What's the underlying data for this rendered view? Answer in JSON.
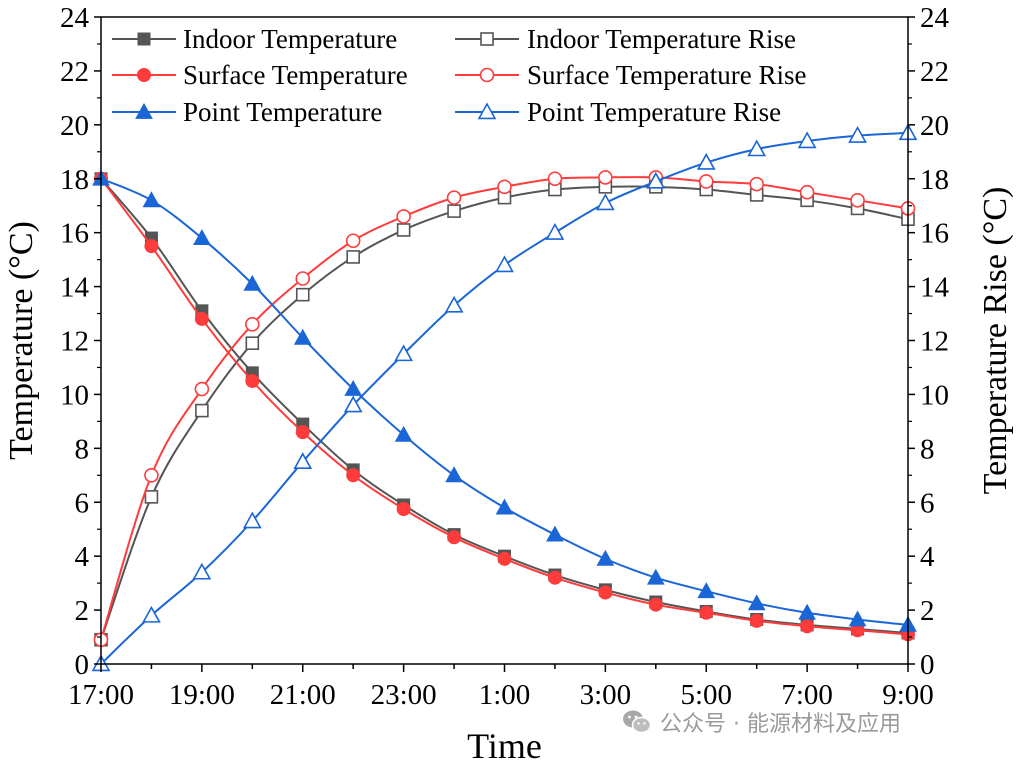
{
  "chart_data": {
    "type": "line",
    "title": "",
    "xlabel": "Time",
    "ylabel": "Temperature (°C)",
    "y2label": "Temperature Rise (°C)",
    "ylim": [
      0,
      24
    ],
    "y2lim": [
      0,
      24
    ],
    "yticks": [
      0,
      2,
      4,
      6,
      8,
      10,
      12,
      14,
      16,
      18,
      20,
      22,
      24
    ],
    "xticks": [
      "17:00",
      "19:00",
      "21:00",
      "23:00",
      "1:00",
      "3:00",
      "5:00",
      "7:00",
      "9:00"
    ],
    "x_hours": [
      0,
      1,
      2,
      3,
      4,
      5,
      6,
      7,
      8,
      9,
      10,
      11,
      12,
      13,
      14,
      15,
      16
    ],
    "legend_position": "top",
    "series": [
      {
        "name": "Indoor Temperature",
        "axis": "left",
        "marker": "square",
        "filled": true,
        "color": "#555555",
        "values": [
          18.0,
          15.8,
          13.1,
          10.8,
          8.9,
          7.2,
          5.9,
          4.8,
          4.0,
          3.3,
          2.75,
          2.3,
          1.95,
          1.65,
          1.45,
          1.3,
          1.15
        ]
      },
      {
        "name": "Indoor Temperature Rise",
        "axis": "right",
        "marker": "square",
        "filled": false,
        "color": "#555555",
        "values": [
          0.9,
          6.2,
          9.4,
          11.9,
          13.7,
          15.1,
          16.1,
          16.8,
          17.3,
          17.6,
          17.7,
          17.7,
          17.6,
          17.4,
          17.2,
          16.9,
          16.5
        ]
      },
      {
        "name": "Surface Temperature",
        "axis": "left",
        "marker": "circle",
        "filled": true,
        "color": "#ff3b3b",
        "values": [
          18.0,
          15.5,
          12.8,
          10.5,
          8.6,
          7.0,
          5.75,
          4.7,
          3.9,
          3.2,
          2.65,
          2.2,
          1.9,
          1.6,
          1.4,
          1.25,
          1.1
        ]
      },
      {
        "name": "Surface Temperature Rise",
        "axis": "right",
        "marker": "circle",
        "filled": false,
        "color": "#ff3b3b",
        "values": [
          0.9,
          7.0,
          10.2,
          12.6,
          14.3,
          15.7,
          16.6,
          17.3,
          17.7,
          18.0,
          18.05,
          18.05,
          17.9,
          17.8,
          17.5,
          17.2,
          16.9
        ]
      },
      {
        "name": "Point Temperature",
        "axis": "left",
        "marker": "triangle",
        "filled": true,
        "color": "#1a66d6",
        "values": [
          18.0,
          17.2,
          15.8,
          14.1,
          12.1,
          10.2,
          8.5,
          7.0,
          5.8,
          4.8,
          3.9,
          3.2,
          2.7,
          2.25,
          1.9,
          1.65,
          1.45
        ]
      },
      {
        "name": "Point Temperature Rise",
        "axis": "right",
        "marker": "triangle",
        "filled": false,
        "color": "#1a66d6",
        "values": [
          0.0,
          1.8,
          3.4,
          5.3,
          7.5,
          9.6,
          11.5,
          13.3,
          14.8,
          16.0,
          17.1,
          17.9,
          18.6,
          19.1,
          19.4,
          19.6,
          19.7
        ]
      }
    ]
  },
  "watermark": {
    "icon": "wechat-icon",
    "text": "公众号 · 能源材料及应用"
  }
}
